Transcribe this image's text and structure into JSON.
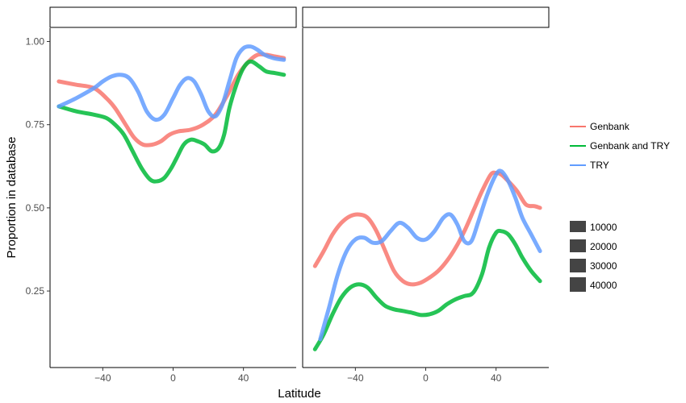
{
  "chart_data": {
    "type": "line",
    "xlabel": "Latitude",
    "ylabel": "Proportion in database",
    "xlim": [
      -70,
      70
    ],
    "ylim": [
      0.02,
      1.04
    ],
    "x_ticks": [
      -40,
      0,
      40
    ],
    "x_tick_labels": [
      "−40",
      "0",
      "40"
    ],
    "y_ticks": [
      0.25,
      0.5,
      0.75,
      1.0
    ],
    "y_tick_labels": [
      "0.25",
      "0.50",
      "0.75",
      "1.00"
    ],
    "grid": false,
    "legend_position": "right",
    "legend_entries": [
      "Genbank",
      "Genbank and TRY",
      "TRY"
    ],
    "size_legend": [
      "10000",
      "20000",
      "30000",
      "40000"
    ],
    "panels": [
      {
        "strip": "",
        "series": [
          {
            "name": "Genbank",
            "color": "#F8766D",
            "points": [
              [
                -65,
                0.88
              ],
              [
                -55,
                0.87
              ],
              [
                -45,
                0.86
              ],
              [
                -38,
                0.83
              ],
              [
                -33,
                0.8
              ],
              [
                -27,
                0.75
              ],
              [
                -22,
                0.71
              ],
              [
                -17,
                0.69
              ],
              [
                -12,
                0.69
              ],
              [
                -7,
                0.7
              ],
              [
                -2,
                0.72
              ],
              [
                3,
                0.73
              ],
              [
                10,
                0.735
              ],
              [
                17,
                0.75
              ],
              [
                24,
                0.78
              ],
              [
                31,
                0.84
              ],
              [
                37,
                0.9
              ],
              [
                43,
                0.94
              ],
              [
                48,
                0.96
              ],
              [
                53,
                0.96
              ],
              [
                58,
                0.955
              ],
              [
                63,
                0.95
              ]
            ]
          },
          {
            "name": "Genbank and TRY",
            "color": "#00BA38",
            "points": [
              [
                -65,
                0.805
              ],
              [
                -55,
                0.79
              ],
              [
                -45,
                0.78
              ],
              [
                -38,
                0.77
              ],
              [
                -33,
                0.75
              ],
              [
                -28,
                0.72
              ],
              [
                -23,
                0.67
              ],
              [
                -18,
                0.62
              ],
              [
                -13,
                0.585
              ],
              [
                -9,
                0.58
              ],
              [
                -5,
                0.59
              ],
              [
                -1,
                0.62
              ],
              [
                2,
                0.65
              ],
              [
                6,
                0.69
              ],
              [
                10,
                0.705
              ],
              [
                14,
                0.7
              ],
              [
                18,
                0.69
              ],
              [
                22,
                0.67
              ],
              [
                26,
                0.68
              ],
              [
                29,
                0.72
              ],
              [
                32,
                0.8
              ],
              [
                36,
                0.87
              ],
              [
                40,
                0.92
              ],
              [
                44,
                0.94
              ],
              [
                49,
                0.925
              ],
              [
                53,
                0.91
              ],
              [
                58,
                0.905
              ],
              [
                63,
                0.9
              ]
            ]
          },
          {
            "name": "TRY",
            "color": "#619CFF",
            "points": [
              [
                -65,
                0.805
              ],
              [
                -55,
                0.83
              ],
              [
                -45,
                0.86
              ],
              [
                -40,
                0.88
              ],
              [
                -35,
                0.895
              ],
              [
                -30,
                0.9
              ],
              [
                -25,
                0.89
              ],
              [
                -20,
                0.85
              ],
              [
                -15,
                0.79
              ],
              [
                -10,
                0.765
              ],
              [
                -5,
                0.78
              ],
              [
                0,
                0.83
              ],
              [
                4,
                0.87
              ],
              [
                8,
                0.89
              ],
              [
                12,
                0.88
              ],
              [
                16,
                0.84
              ],
              [
                20,
                0.79
              ],
              [
                24,
                0.775
              ],
              [
                28,
                0.81
              ],
              [
                32,
                0.88
              ],
              [
                36,
                0.95
              ],
              [
                40,
                0.98
              ],
              [
                44,
                0.985
              ],
              [
                48,
                0.975
              ],
              [
                52,
                0.96
              ],
              [
                57,
                0.95
              ],
              [
                63,
                0.945
              ]
            ]
          }
        ]
      },
      {
        "strip": "",
        "series": [
          {
            "name": "Genbank",
            "color": "#F8766D",
            "points": [
              [
                -63,
                0.325
              ],
              [
                -58,
                0.37
              ],
              [
                -53,
                0.42
              ],
              [
                -48,
                0.455
              ],
              [
                -43,
                0.475
              ],
              [
                -38,
                0.48
              ],
              [
                -33,
                0.47
              ],
              [
                -28,
                0.43
              ],
              [
                -23,
                0.37
              ],
              [
                -18,
                0.31
              ],
              [
                -13,
                0.28
              ],
              [
                -8,
                0.27
              ],
              [
                -3,
                0.275
              ],
              [
                2,
                0.29
              ],
              [
                7,
                0.31
              ],
              [
                12,
                0.34
              ],
              [
                17,
                0.38
              ],
              [
                22,
                0.43
              ],
              [
                27,
                0.49
              ],
              [
                32,
                0.55
              ],
              [
                37,
                0.6
              ],
              [
                40,
                0.605
              ],
              [
                43,
                0.6
              ],
              [
                47,
                0.58
              ],
              [
                52,
                0.55
              ],
              [
                57,
                0.51
              ],
              [
                62,
                0.505
              ],
              [
                65,
                0.5
              ]
            ]
          },
          {
            "name": "Genbank and TRY",
            "color": "#00BA38",
            "points": [
              [
                -63,
                0.075
              ],
              [
                -58,
                0.12
              ],
              [
                -53,
                0.18
              ],
              [
                -48,
                0.23
              ],
              [
                -43,
                0.26
              ],
              [
                -38,
                0.27
              ],
              [
                -33,
                0.26
              ],
              [
                -28,
                0.23
              ],
              [
                -23,
                0.205
              ],
              [
                -18,
                0.195
              ],
              [
                -13,
                0.19
              ],
              [
                -8,
                0.185
              ],
              [
                -3,
                0.178
              ],
              [
                2,
                0.18
              ],
              [
                7,
                0.19
              ],
              [
                12,
                0.21
              ],
              [
                17,
                0.225
              ],
              [
                22,
                0.235
              ],
              [
                27,
                0.245
              ],
              [
                32,
                0.3
              ],
              [
                36,
                0.38
              ],
              [
                40,
                0.425
              ],
              [
                43,
                0.43
              ],
              [
                47,
                0.42
              ],
              [
                51,
                0.39
              ],
              [
                55,
                0.35
              ],
              [
                60,
                0.31
              ],
              [
                65,
                0.28
              ]
            ]
          },
          {
            "name": "TRY",
            "color": "#619CFF",
            "points": [
              [
                -60,
                0.105
              ],
              [
                -55,
                0.2
              ],
              [
                -50,
                0.3
              ],
              [
                -45,
                0.37
              ],
              [
                -40,
                0.405
              ],
              [
                -35,
                0.41
              ],
              [
                -30,
                0.395
              ],
              [
                -25,
                0.4
              ],
              [
                -20,
                0.43
              ],
              [
                -15,
                0.455
              ],
              [
                -10,
                0.44
              ],
              [
                -5,
                0.41
              ],
              [
                0,
                0.405
              ],
              [
                5,
                0.43
              ],
              [
                10,
                0.47
              ],
              [
                14,
                0.48
              ],
              [
                18,
                0.45
              ],
              [
                22,
                0.4
              ],
              [
                26,
                0.4
              ],
              [
                30,
                0.46
              ],
              [
                35,
                0.54
              ],
              [
                40,
                0.6
              ],
              [
                43,
                0.61
              ],
              [
                47,
                0.58
              ],
              [
                51,
                0.53
              ],
              [
                55,
                0.47
              ],
              [
                60,
                0.42
              ],
              [
                65,
                0.37
              ]
            ]
          }
        ]
      }
    ]
  }
}
